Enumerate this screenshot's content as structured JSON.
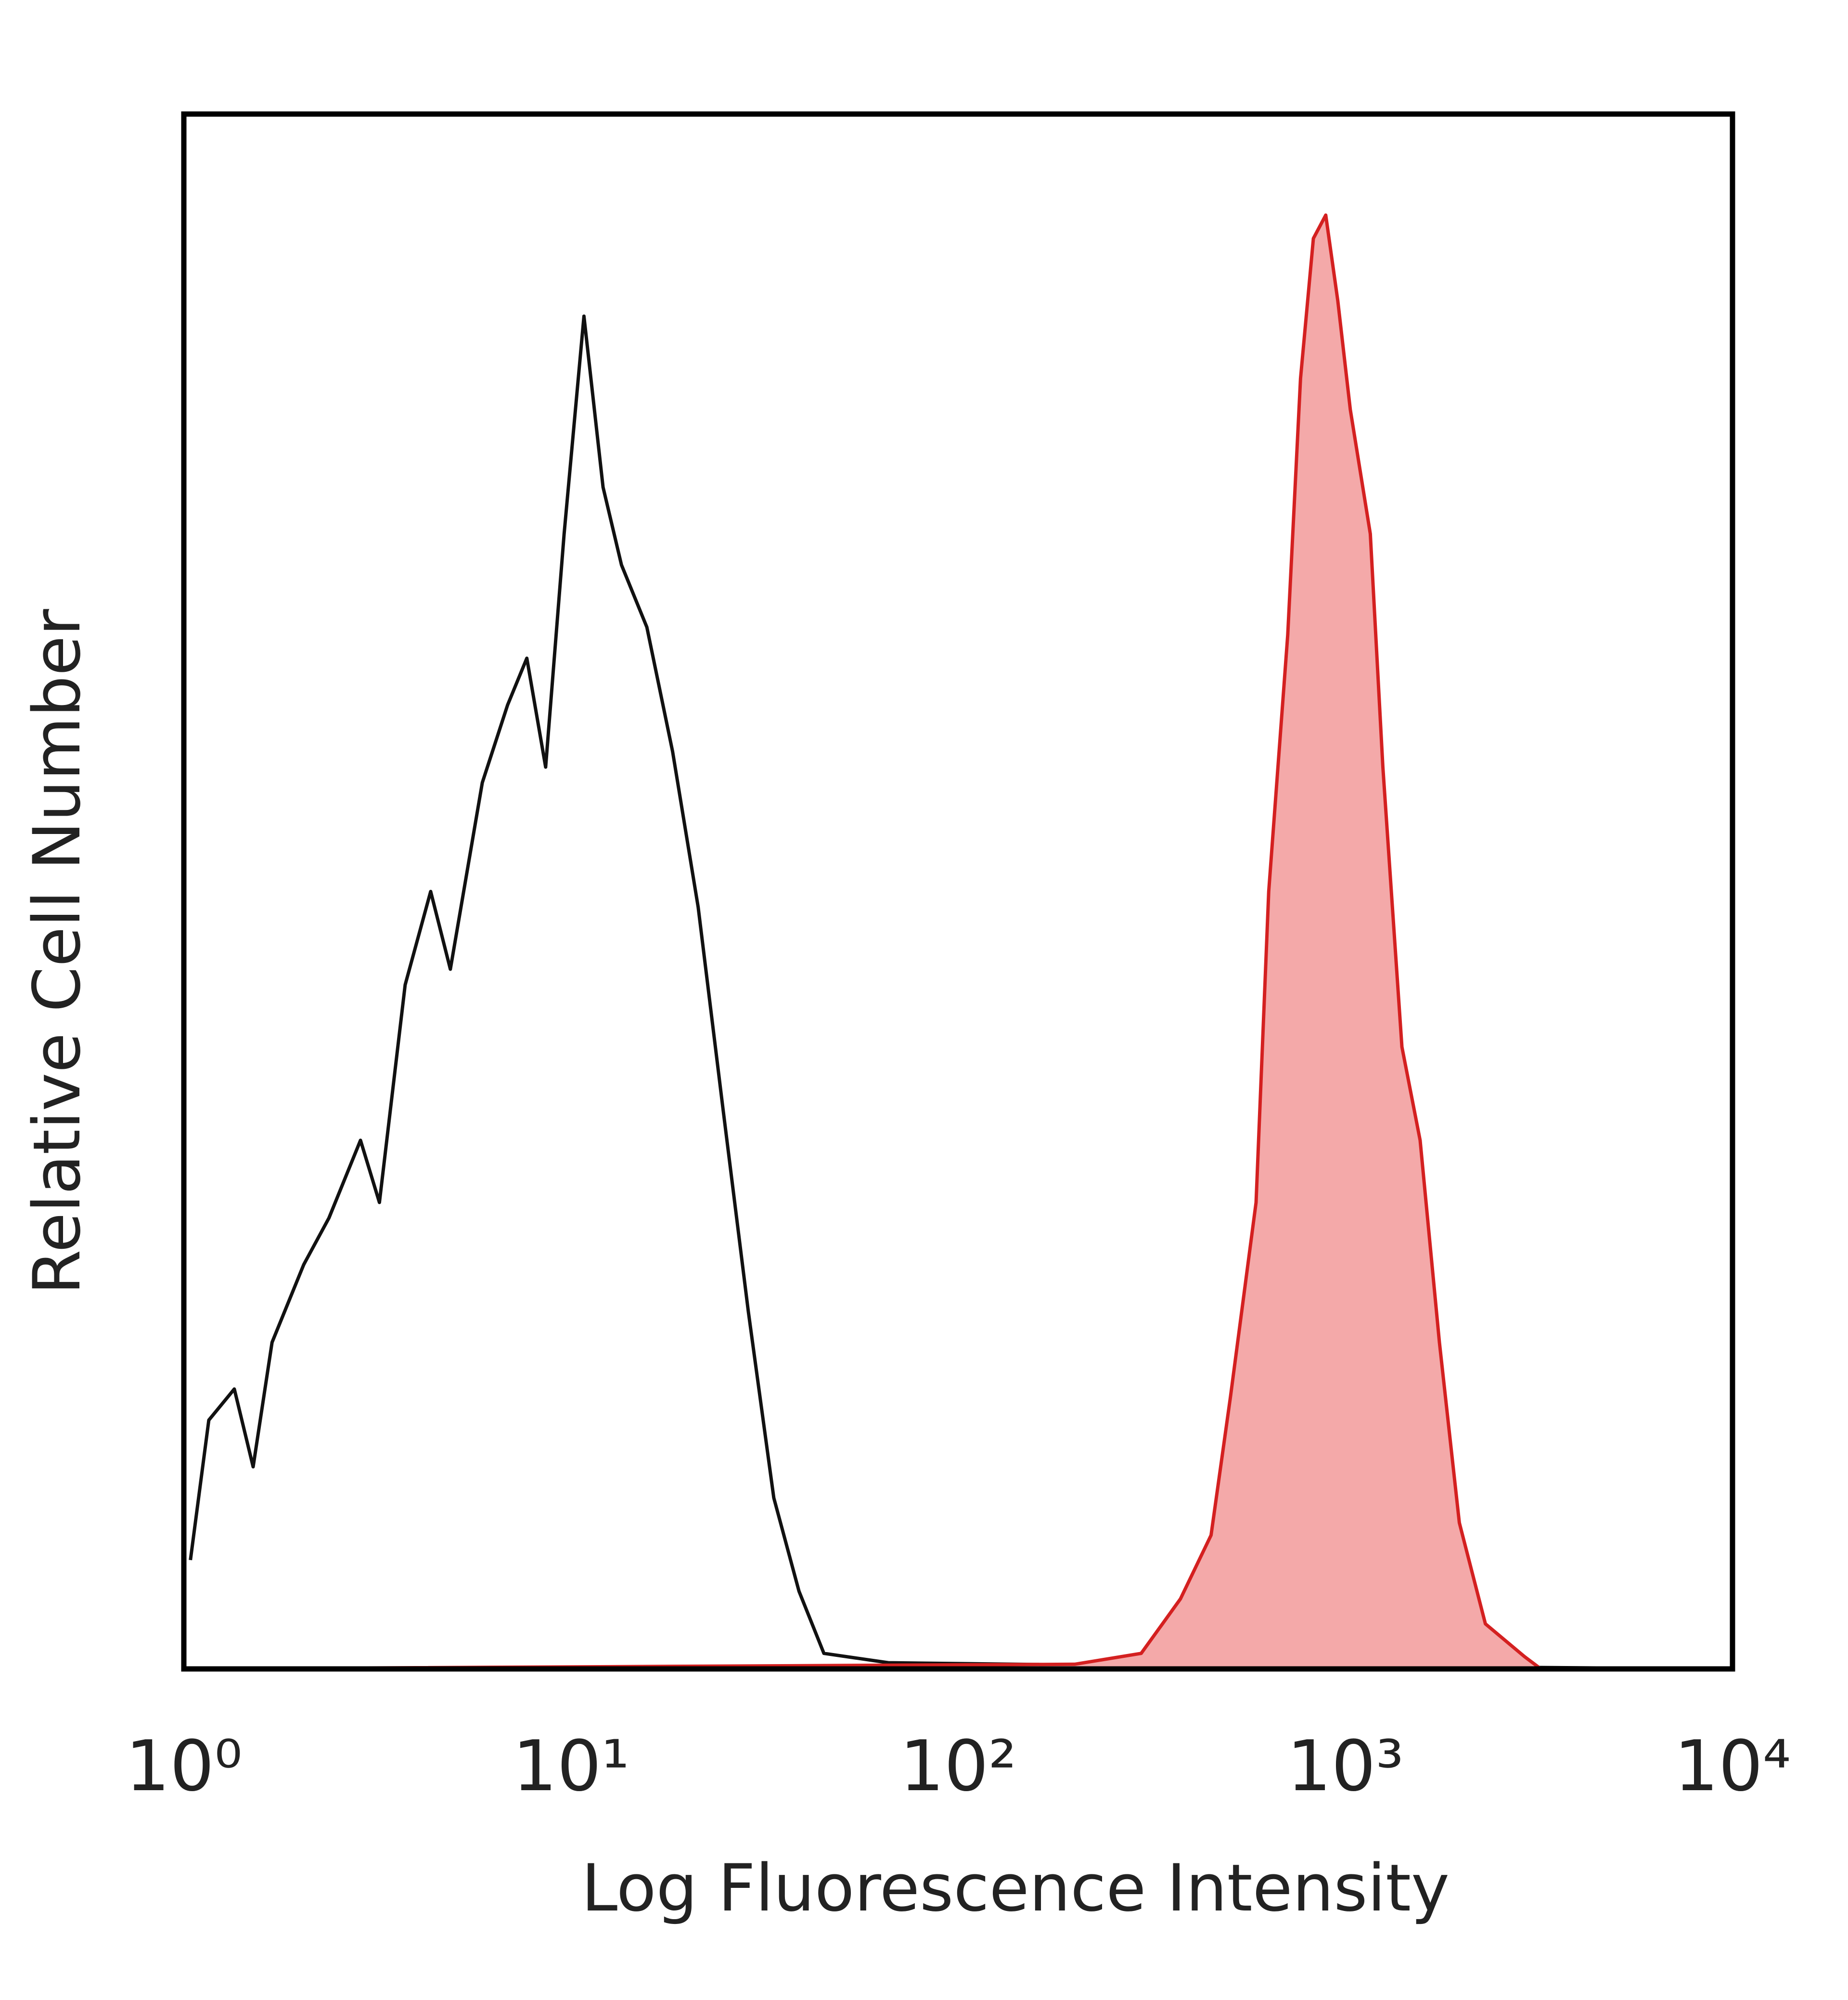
{
  "chart_data": {
    "type": "histogram-overlay",
    "xlabel": "Log Fluorescence Intensity",
    "ylabel": "Relative Cell Number",
    "log_x": true,
    "xlim": [
      1,
      10000
    ],
    "xticks": [
      {
        "value": 1,
        "label": "10⁰"
      },
      {
        "value": 10,
        "label": "10¹"
      },
      {
        "value": 100,
        "label": "10²"
      },
      {
        "value": 1000,
        "label": "10³"
      },
      {
        "value": 10000,
        "label": "10⁴"
      }
    ],
    "ylim": [
      0,
      100
    ],
    "series": [
      {
        "color": "#111111",
        "filled": false,
        "x": [
          1.04,
          1.16,
          1.35,
          1.51,
          1.69,
          2.04,
          2.37,
          2.86,
          3.2,
          3.73,
          4.34,
          4.88,
          5.9,
          6.86,
          7.69,
          8.6,
          9.6,
          10.8,
          12.1,
          13.5,
          15.7,
          18.3,
          21.3,
          24.7,
          28.7,
          33.4,
          38.8,
          45,
          66,
          297,
          634,
          795,
          9600
        ],
        "values": [
          7,
          16,
          18,
          13,
          21,
          26,
          29,
          34,
          30,
          44,
          50,
          45,
          57,
          62,
          65,
          58,
          73,
          87,
          76,
          71,
          67,
          59,
          49,
          36,
          23,
          11,
          5,
          1,
          0.4,
          0.2,
          0.8,
          0.2,
          0
        ]
      },
      {
        "color": "#d42020",
        "fill": "#f4a9a9",
        "filled": true,
        "x": [
          1,
          200,
          297,
          375,
          450,
          505,
          588,
          634,
          710,
          766,
          827,
          890,
          956,
          1030,
          1160,
          1250,
          1400,
          1560,
          1750,
          1970,
          2300,
          2900,
          3200
        ],
        "values": [
          0,
          0.3,
          1,
          4.5,
          8.6,
          17.5,
          30,
          50,
          66.5,
          83,
          92,
          93.5,
          88,
          81,
          73,
          58,
          40,
          34,
          21,
          9.4,
          2.9,
          0.8,
          0
        ]
      }
    ]
  }
}
